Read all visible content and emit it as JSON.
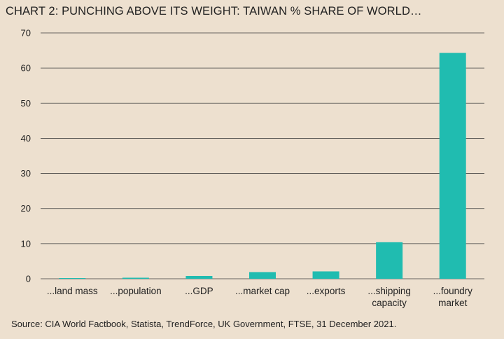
{
  "chart_data": {
    "type": "bar",
    "title": "CHART 2: PUNCHING ABOVE ITS WEIGHT: TAIWAN % SHARE OF WORLD…",
    "categories": [
      "...land mass",
      "...population",
      "...GDP",
      "...market cap",
      "...exports",
      "...shipping capacity",
      "...foundry market"
    ],
    "category_lines": [
      [
        "...land mass"
      ],
      [
        "...population"
      ],
      [
        "...GDP"
      ],
      [
        "...market cap"
      ],
      [
        "...exports"
      ],
      [
        "...shipping",
        "capacity"
      ],
      [
        "...foundry",
        "market"
      ]
    ],
    "values": [
      0.03,
      0.3,
      0.8,
      1.9,
      2.1,
      10.4,
      64.3
    ],
    "ylim": [
      0,
      70
    ],
    "yticks": [
      0,
      10,
      20,
      30,
      40,
      50,
      60,
      70
    ],
    "grid": true,
    "xlabel": "",
    "ylabel": "",
    "bar_color": "#20bcb0",
    "source": "Source: CIA World Factbook, Statista, TrendForce, UK Government, FTSE, 31 December 2021."
  },
  "colors": {
    "background": "#ede0cf",
    "grid": "#3d3d3d",
    "bar": "#20bcb0"
  }
}
